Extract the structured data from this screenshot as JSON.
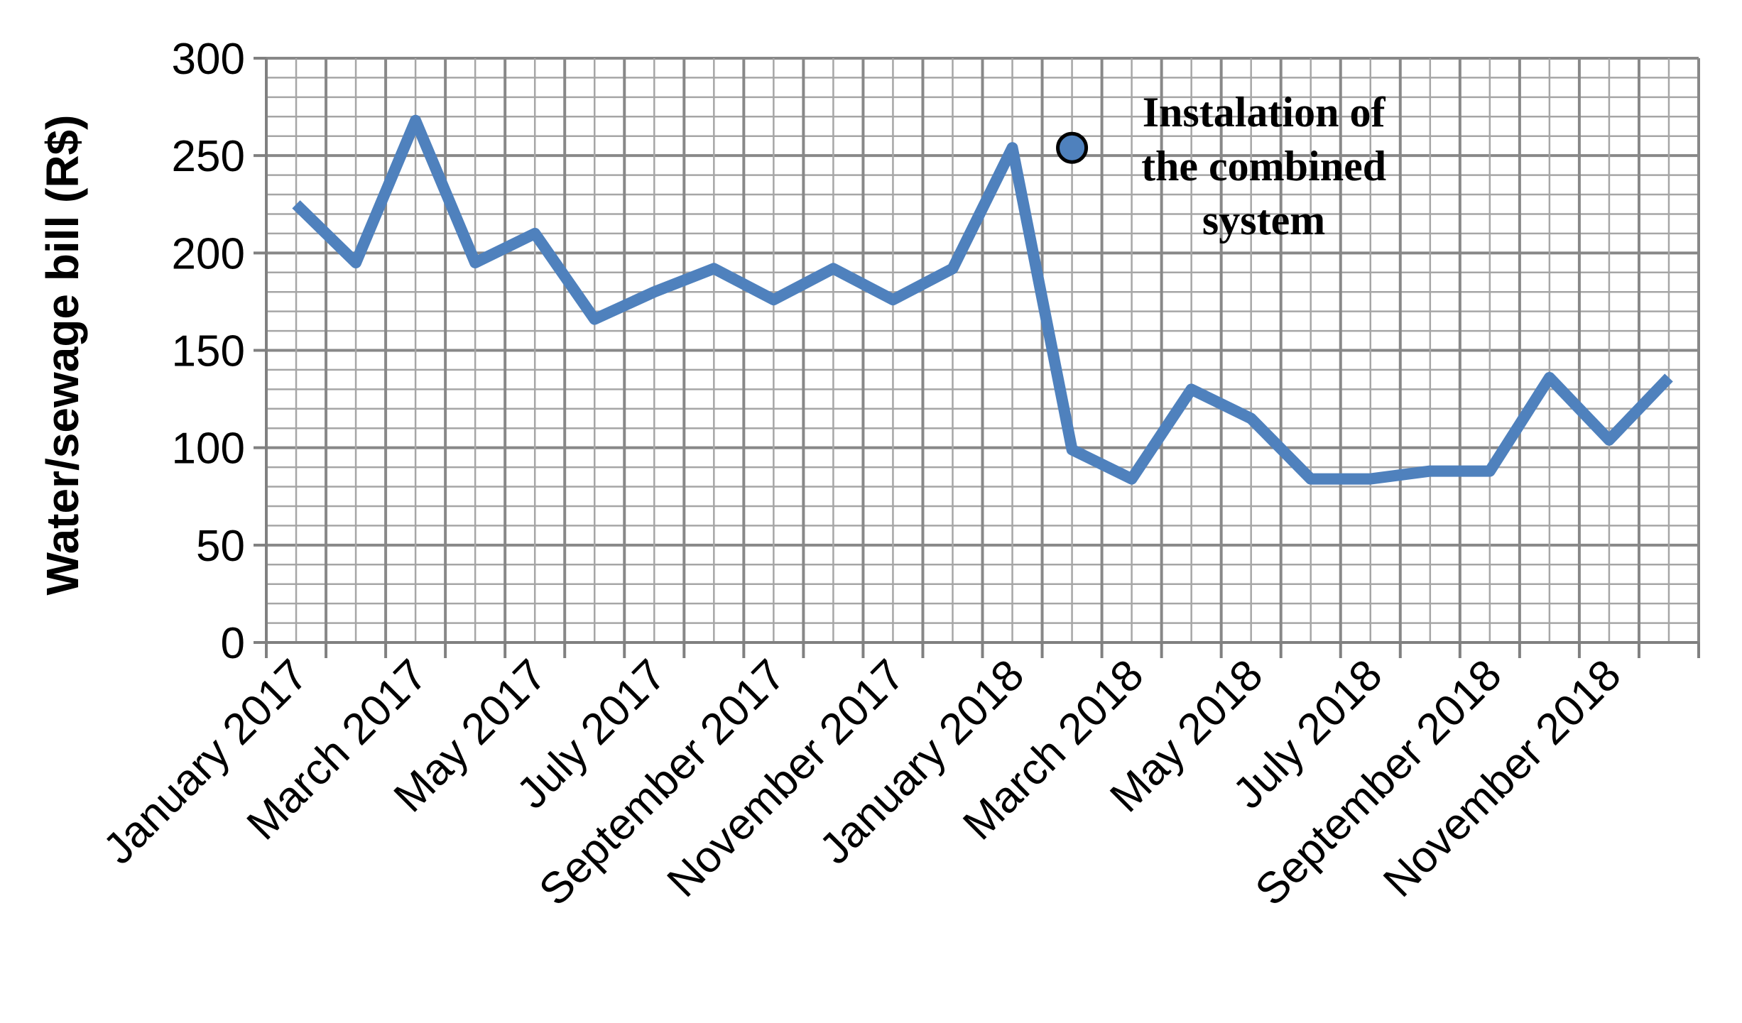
{
  "chart_data": {
    "type": "line",
    "title": "",
    "xlabel": "",
    "ylabel": "Water/sewage bill (R$)",
    "ylim": [
      0,
      300
    ],
    "y_ticks": [
      "0",
      "50",
      "100",
      "150",
      "200",
      "250",
      "300"
    ],
    "x_tick_labels": [
      "January 2017",
      "March 2017",
      "May 2017",
      "July 2017",
      "September 2017",
      "November 2017",
      "January 2018",
      "March 2018",
      "May 2018",
      "July 2018",
      "September 2018",
      "November 2018"
    ],
    "grid": true,
    "legend": "none",
    "colors": {
      "line": "#4f81bd",
      "grid_major": "#888888",
      "grid_minor": "#a6a6a6",
      "axis": "#808080",
      "marker_edge": "#000000"
    },
    "series": [
      {
        "x": [
          "January 2017",
          "February 2017",
          "March 2017",
          "April 2017",
          "May 2017",
          "June 2017",
          "July 2017",
          "August 2017",
          "September 2017",
          "October 2017",
          "November 2017",
          "December 2017",
          "January 2018",
          "February 2018",
          "March 2018",
          "April 2018",
          "May 2018",
          "June 2018",
          "July 2018",
          "August 2018",
          "September 2018",
          "October 2018",
          "November 2018",
          "December 2018"
        ],
        "values": [
          225,
          195,
          268,
          195,
          210,
          166,
          180,
          192,
          176,
          192,
          176,
          192,
          254,
          99,
          84,
          130,
          115,
          84,
          84,
          88,
          88,
          136,
          104,
          136
        ]
      }
    ],
    "annotations": [
      {
        "text_lines": [
          "Instalation of",
          "the combined",
          "system"
        ],
        "x": "February 2018",
        "y": 254
      }
    ]
  }
}
